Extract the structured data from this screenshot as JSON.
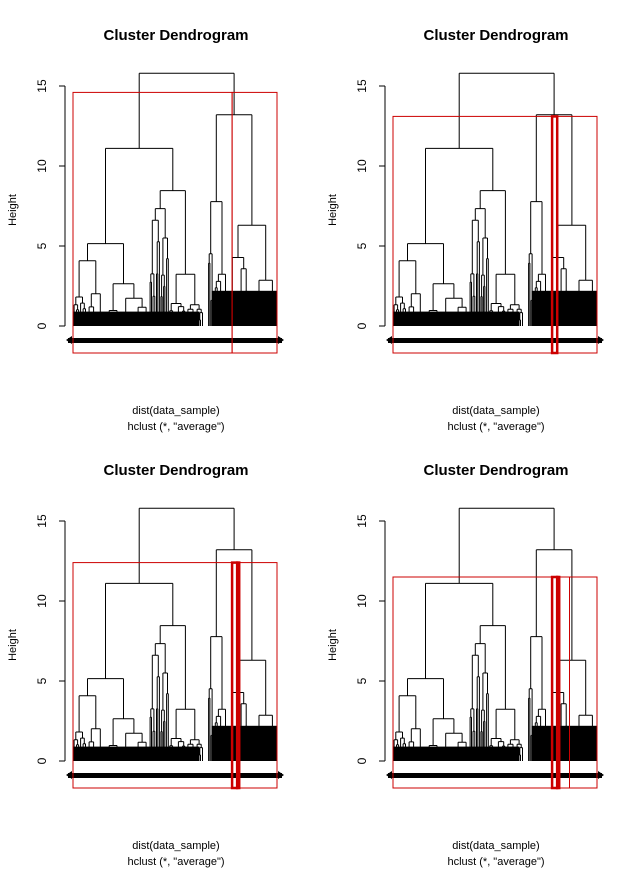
{
  "chart_data": [
    {
      "type": "dendrogram",
      "title": "Cluster Dendrogram",
      "ylabel": "Height",
      "xlabel": "dist(data_sample)",
      "sublabel": "hclust (*, \"average\")",
      "ylim": [
        0,
        16
      ],
      "yticks": [
        0,
        5,
        10,
        15
      ],
      "root_height": 15.8,
      "left_branch_height": 11.1,
      "right_branch_height": 13.2,
      "rect_hclust": {
        "k": 2,
        "cut_height": 14.6,
        "clusters": [
          {
            "from": 0.0,
            "to": 0.78
          },
          {
            "from": 0.78,
            "to": 1.0
          }
        ]
      }
    },
    {
      "type": "dendrogram",
      "title": "Cluster Dendrogram",
      "ylabel": "Height",
      "xlabel": "dist(data_sample)",
      "sublabel": "hclust (*, \"average\")",
      "ylim": [
        0,
        16
      ],
      "yticks": [
        0,
        5,
        10,
        15
      ],
      "root_height": 15.8,
      "left_branch_height": 11.1,
      "right_branch_height": 13.2,
      "rect_hclust": {
        "k": 3,
        "cut_height": 13.1,
        "clusters": [
          {
            "from": 0.0,
            "to": 0.78
          },
          {
            "from": 0.78,
            "to": 0.805
          },
          {
            "from": 0.805,
            "to": 1.0
          }
        ]
      }
    },
    {
      "type": "dendrogram",
      "title": "Cluster Dendrogram",
      "ylabel": "Height",
      "xlabel": "dist(data_sample)",
      "sublabel": "hclust (*, \"average\")",
      "ylim": [
        0,
        16
      ],
      "yticks": [
        0,
        5,
        10,
        15
      ],
      "root_height": 15.8,
      "left_branch_height": 11.1,
      "right_branch_height": 13.2,
      "rect_hclust": {
        "k": 4,
        "cut_height": 12.4,
        "clusters": [
          {
            "from": 0.0,
            "to": 0.78
          },
          {
            "from": 0.78,
            "to": 0.805
          },
          {
            "from": 0.805,
            "to": 0.815
          },
          {
            "from": 0.815,
            "to": 1.0
          }
        ]
      }
    },
    {
      "type": "dendrogram",
      "title": "Cluster Dendrogram",
      "ylabel": "Height",
      "xlabel": "dist(data_sample)",
      "sublabel": "hclust (*, \"average\")",
      "ylim": [
        0,
        16
      ],
      "yticks": [
        0,
        5,
        10,
        15
      ],
      "root_height": 15.8,
      "left_branch_height": 11.1,
      "right_branch_height": 13.2,
      "rect_hclust": {
        "k": 5,
        "cut_height": 11.5,
        "clusters": [
          {
            "from": 0.0,
            "to": 0.78
          },
          {
            "from": 0.78,
            "to": 0.805
          },
          {
            "from": 0.805,
            "to": 0.815
          },
          {
            "from": 0.815,
            "to": 0.865
          },
          {
            "from": 0.865,
            "to": 1.0
          }
        ]
      }
    }
  ],
  "colors": {
    "tree": "#000000",
    "rect": "#cc0000",
    "background": "#ffffff"
  }
}
